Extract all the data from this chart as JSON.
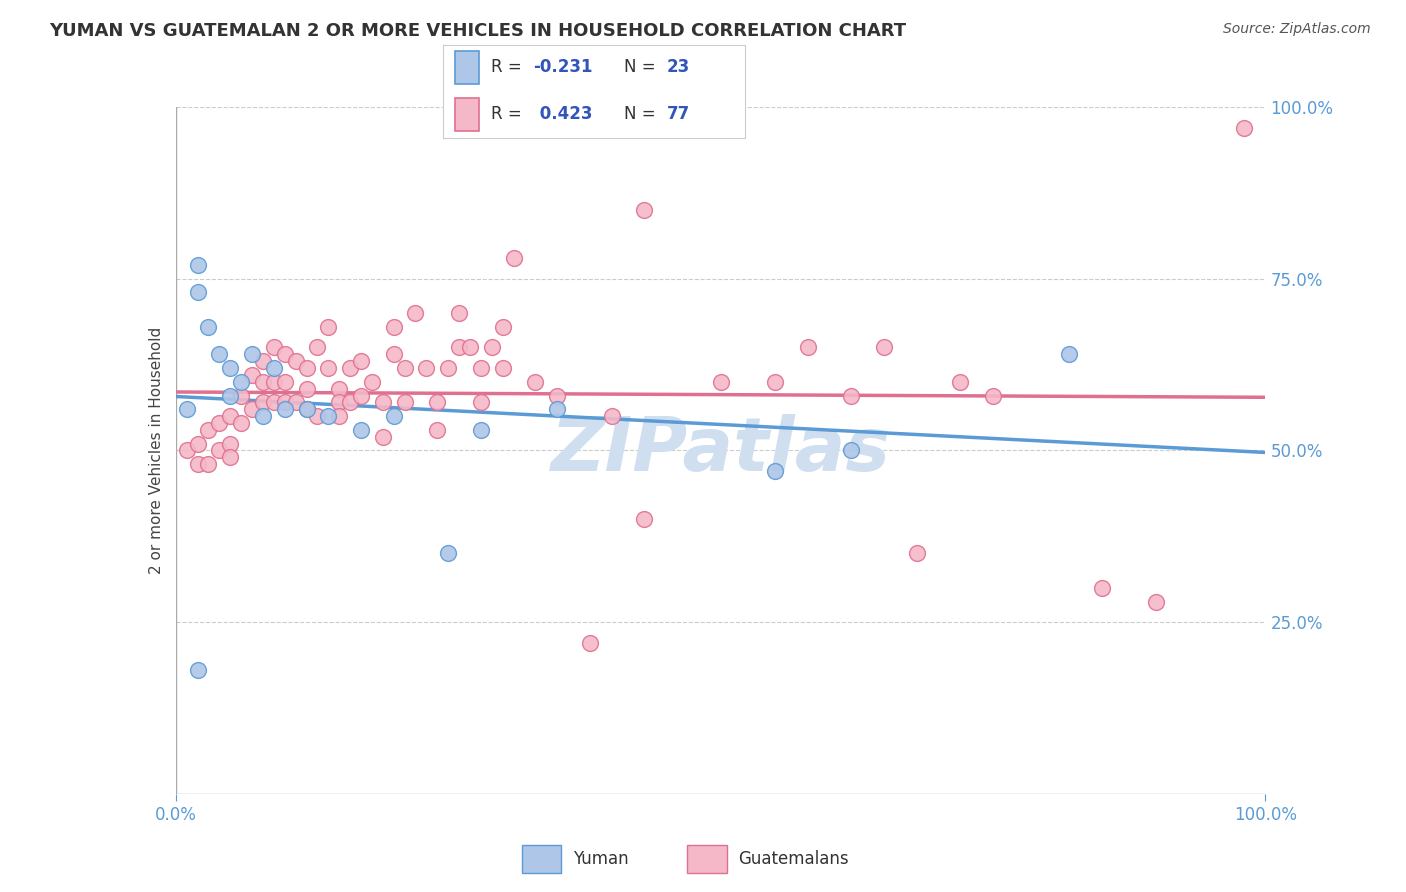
{
  "title": "YUMAN VS GUATEMALAN 2 OR MORE VEHICLES IN HOUSEHOLD CORRELATION CHART",
  "source_text": "Source: ZipAtlas.com",
  "ylabel": "2 or more Vehicles in Household",
  "yuman_R": -0.231,
  "yuman_N": 23,
  "guatemalan_R": 0.423,
  "guatemalan_N": 77,
  "legend_label_1": "Yuman",
  "legend_label_2": "Guatemalans",
  "yuman_color": "#aec6e8",
  "guatemalan_color": "#f4b8c8",
  "yuman_edge_color": "#5b9bd5",
  "guatemalan_edge_color": "#e07090",
  "yuman_line_color": "#5b9bd5",
  "guatemalan_line_color": "#e07090",
  "background_color": "#ffffff",
  "watermark_text": "ZIPatlas",
  "watermark_color": "#d0dff0",
  "xlim": [
    0.0,
    1.0
  ],
  "ylim": [
    0.0,
    1.0
  ],
  "ytick_vals": [
    0.25,
    0.5,
    0.75,
    1.0
  ],
  "ytick_labels": [
    "25.0%",
    "50.0%",
    "75.0%",
    "100.0%"
  ],
  "yuman_x": [
    0.01,
    0.02,
    0.02,
    0.03,
    0.04,
    0.05,
    0.05,
    0.06,
    0.07,
    0.08,
    0.09,
    0.1,
    0.12,
    0.14,
    0.17,
    0.2,
    0.25,
    0.28,
    0.35,
    0.55,
    0.62,
    0.82,
    0.02
  ],
  "yuman_y": [
    0.56,
    0.77,
    0.73,
    0.68,
    0.64,
    0.62,
    0.58,
    0.6,
    0.64,
    0.55,
    0.62,
    0.56,
    0.56,
    0.55,
    0.53,
    0.55,
    0.35,
    0.53,
    0.56,
    0.47,
    0.5,
    0.64,
    0.18
  ],
  "guatemalan_x": [
    0.01,
    0.02,
    0.02,
    0.03,
    0.03,
    0.04,
    0.04,
    0.05,
    0.05,
    0.05,
    0.06,
    0.06,
    0.07,
    0.07,
    0.08,
    0.08,
    0.08,
    0.09,
    0.09,
    0.09,
    0.1,
    0.1,
    0.1,
    0.11,
    0.11,
    0.12,
    0.12,
    0.12,
    0.13,
    0.13,
    0.14,
    0.14,
    0.15,
    0.15,
    0.15,
    0.16,
    0.16,
    0.17,
    0.17,
    0.18,
    0.19,
    0.19,
    0.2,
    0.2,
    0.21,
    0.21,
    0.22,
    0.23,
    0.24,
    0.24,
    0.25,
    0.26,
    0.26,
    0.27,
    0.28,
    0.28,
    0.29,
    0.3,
    0.3,
    0.31,
    0.33,
    0.35,
    0.38,
    0.4,
    0.43,
    0.43,
    0.5,
    0.55,
    0.58,
    0.62,
    0.65,
    0.68,
    0.72,
    0.75,
    0.85,
    0.9,
    0.98
  ],
  "guatemalan_y": [
    0.5,
    0.51,
    0.48,
    0.53,
    0.48,
    0.54,
    0.5,
    0.55,
    0.51,
    0.49,
    0.58,
    0.54,
    0.61,
    0.56,
    0.63,
    0.6,
    0.57,
    0.65,
    0.6,
    0.57,
    0.64,
    0.6,
    0.57,
    0.63,
    0.57,
    0.62,
    0.59,
    0.56,
    0.65,
    0.55,
    0.68,
    0.62,
    0.59,
    0.57,
    0.55,
    0.62,
    0.57,
    0.63,
    0.58,
    0.6,
    0.52,
    0.57,
    0.68,
    0.64,
    0.62,
    0.57,
    0.7,
    0.62,
    0.57,
    0.53,
    0.62,
    0.7,
    0.65,
    0.65,
    0.62,
    0.57,
    0.65,
    0.68,
    0.62,
    0.78,
    0.6,
    0.58,
    0.22,
    0.55,
    0.85,
    0.4,
    0.6,
    0.6,
    0.65,
    0.58,
    0.65,
    0.35,
    0.6,
    0.58,
    0.3,
    0.28,
    0.97
  ]
}
